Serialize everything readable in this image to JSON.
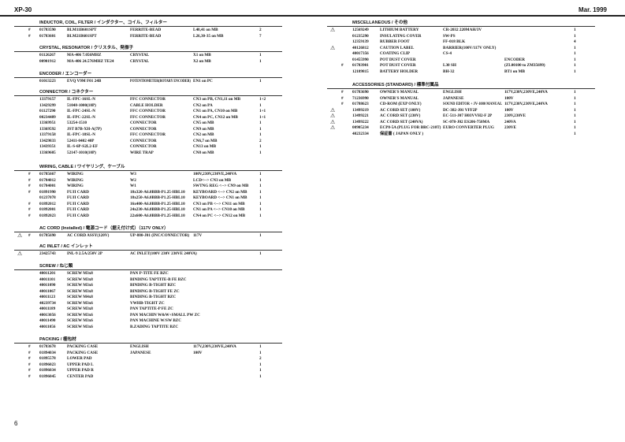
{
  "header": {
    "model": "XP-30",
    "date": "Mar. 1999",
    "page": "6"
  },
  "left": [
    {
      "title": "INDUCTOR, COIL, FILTER / インダクター、コイル、フィルター",
      "items": [
        [
          "",
          "#",
          "01783590",
          "BLM11B601SPT",
          "FERRITE-BEAD",
          "L40,41 on MB",
          "2"
        ],
        [
          "",
          "#",
          "01783601",
          "BLM21B601SPT",
          "FERRITE-BEAD",
          "L26,30-35 on MB",
          "7"
        ]
      ]
    },
    {
      "title": "CRYSTAL, RESONATOR / クリスタル、発振子",
      "items": [
        [
          "",
          "",
          "01126267",
          "MA-406 7.056MHZ",
          "CRYSTAL",
          "X1 on MB",
          "1"
        ],
        [
          "",
          "",
          "00901912",
          "MA-406 24.576MHZ TE24",
          "CRYSTAL",
          "X2 on MB",
          "1"
        ]
      ]
    },
    {
      "title": "ENCODER / エンコーダー",
      "items": [
        [
          "",
          "",
          "01013223",
          "EVQ V9M F01 24B",
          "POTENTIOMETER(ROTARY ENCODER)",
          "EN1 on PC",
          "1"
        ]
      ]
    },
    {
      "title": "CONNECTOR / コネクター",
      "items": [
        [
          "",
          "",
          "13379157",
          "IL-FPC-16SL-N",
          "FFC CONNECTOR",
          "CN3 on PB, CN1,11 on MB",
          "1+2"
        ],
        [
          "",
          "",
          "13429299",
          "51048-1000(10P)",
          "CABLE HOLDER",
          "CN2 on PA",
          "1"
        ],
        [
          "",
          "",
          "01127290",
          "IL-FPC-24SL-N",
          "FFC CONNECTOR",
          "CN1 on PA, CN10 on MB",
          "1+1"
        ],
        [
          "",
          "",
          "00234489",
          "IL-FPC-22SL-N",
          "FFC CONNECTOR",
          "CN4 on PC, CN12 on MB",
          "1+1"
        ],
        [
          "",
          "",
          "13369951",
          "53254-1510",
          "CONNECTOR",
          "CN5 on MB",
          "1"
        ],
        [
          "",
          "",
          "13369592",
          "JST B7B-XH-A(7P)",
          "CONNECTOR",
          "CN9 on MB",
          "1"
        ],
        [
          "",
          "",
          "13379158",
          "IL-FPC-18SL-N",
          "FFC CONNECTOR",
          "CN2 on MB",
          "1"
        ],
        [
          "",
          "",
          "13429833",
          "52411-0402 40P",
          "CONNECTOR",
          "CN6,7 on MB",
          "2"
        ],
        [
          "",
          "",
          "13439351",
          "IL-S-6P-S2L2-EF",
          "CONNECTOR",
          "CN13 on MB",
          "1"
        ],
        [
          "",
          "",
          "13369605",
          "52147-1010(10P)",
          "WIRE TRAP",
          "CN8 on MB",
          "1"
        ]
      ]
    },
    {
      "title": "WIRING, CABLE / ワイヤリング、ケーブル",
      "items": [
        [
          "",
          "#",
          "01785667",
          "WIRING",
          "W3",
          "100V,230V,230VE,240VA",
          "1"
        ],
        [
          "",
          "#",
          "01784012",
          "WIRING",
          "W2",
          "LCD<--> CN3 on MB",
          "1"
        ],
        [
          "",
          "#",
          "01784001",
          "WIRING",
          "W1",
          "SWTNG REG <--> CN9 on MB",
          "1"
        ],
        [
          "",
          "#",
          "01891990",
          "FUJI CARD",
          "18x320-A6.0BBB-P1.25-HBL10",
          "KEYBOARD <--> CN2 on MB",
          "1"
        ],
        [
          "",
          "",
          "01237078",
          "FUJI CARD",
          "18x250-A6.0BBB-P1.25-HBL10",
          "KEYBOARD <--> CN1 on MB",
          "1"
        ],
        [
          "",
          "#",
          "01892012",
          "FUJI CARD",
          "16x400-A6.0BBB-P1.25-HBL10",
          "CN3 on PB <--> CN11 on MB",
          "1"
        ],
        [
          "",
          "#",
          "01892001",
          "FUJI CARD",
          "24x230-A6.0BBB-P1.25-HBL10",
          "CN1 on PA <--> CN10 on MB",
          "1"
        ],
        [
          "",
          "#",
          "01892023",
          "FUJI CARD",
          "22x600-A6.0BBB-P1.25-HBL10",
          "CN4 on PC <--> CN12 on MB",
          "1"
        ]
      ]
    },
    {
      "title": "AC CORD (Installed) / 電源コード（据え付け式）（117V ONLY）",
      "items": [
        [
          "⚠",
          "#",
          "01785690",
          "AC CORD ASSY(120V)",
          "UP-880-J01 (INC/CONNECTOR)",
          "117V",
          "1"
        ]
      ]
    },
    {
      "title": "AC INLET / AC インレット",
      "items": [
        [
          "⚠",
          "",
          "23425743",
          "INL-9 2.5A/250V 2P",
          "AC INLET(100V 230V 230VE 240VA)",
          "",
          "1"
        ]
      ]
    },
    {
      "title": "SCREW / ねじ類",
      "items": [
        [
          "",
          "",
          "40011201",
          "SCREW M3x8",
          "PAN P-TITE FE BZC",
          "",
          ""
        ],
        [
          "",
          "",
          "40011101",
          "SCREW M3x8",
          "BINDING TAPTITE-B FE BZC",
          "",
          ""
        ],
        [
          "",
          "",
          "40011090",
          "SCREW M3x6",
          "BINDING B-TIGHT BZC",
          "",
          ""
        ],
        [
          "",
          "",
          "40011067",
          "SCREW M3x8",
          "BINDING B-TIGHT FE ZC",
          "",
          ""
        ],
        [
          "",
          "",
          "40011123",
          "SCREW M4x8",
          "BINDING B-TIGHT BZC",
          "",
          ""
        ],
        [
          "",
          "",
          "40239734",
          "SCREW M3x6",
          "VWHB-TIGHT ZC",
          "",
          ""
        ],
        [
          "",
          "",
          "40011189",
          "SCREW M3x8",
          "PAN TAPTITE-P FE ZC",
          "",
          ""
        ],
        [
          "",
          "",
          "40013056",
          "SCREW M3x6",
          "PAN MACHIN W&W+SMALL PW ZC",
          "",
          ""
        ],
        [
          "",
          "",
          "40011490",
          "SCREW M3x6",
          "PAN MACHINE W/SW BZC",
          "",
          ""
        ],
        [
          "",
          "",
          "40011056",
          "SCREW M3x6",
          "B.ZADING TAPTITE BZC",
          "",
          ""
        ]
      ]
    },
    {
      "title": "PACKING / 梱包材",
      "items": [
        [
          "",
          "#",
          "01783678",
          "PACKING CASE",
          "ENGLISH",
          "117V,230V,230VE,240VA",
          "1"
        ],
        [
          "",
          "#",
          "01894034",
          "PACKING CASE",
          "JAPANESE",
          "100V",
          "1"
        ],
        [
          "",
          "#",
          "01895578",
          "LOWER PAD",
          "",
          "",
          "2"
        ],
        [
          "",
          "#",
          "01896023",
          "UPPER PAD L",
          "",
          "",
          "1"
        ],
        [
          "",
          "#",
          "01896034",
          "UPPER PAD R",
          "",
          "",
          "1"
        ],
        [
          "",
          "#",
          "01896045",
          "CENTER PAD",
          "",
          "",
          "1"
        ]
      ]
    }
  ],
  "right": [
    {
      "title": "MISCELLANEOUS / その他",
      "items": [
        [
          "⚠",
          "",
          "12569249",
          "LITHIUM BATTERY",
          "CR-2032 220MAH/3V",
          "",
          "1"
        ],
        [
          "",
          "",
          "01235290",
          "INSULATING COVER",
          "SW-PS",
          "",
          "1"
        ],
        [
          "",
          "",
          "12359139",
          "RUBBER FOOT",
          "FF-018 BLK",
          "",
          "4"
        ],
        [
          "⚠",
          "",
          "40126812",
          "CAUTION LABEL",
          "BARRIER(100V/117V ONLY)",
          "",
          "1"
        ],
        [
          "",
          "",
          "40017356",
          "COATING CLIP",
          "CS-4",
          "",
          "1"
        ],
        [
          "",
          "",
          "01455990",
          "POT DUST COVER",
          "",
          "ENCODER",
          "1"
        ],
        [
          "",
          "#",
          "01783901",
          "POT DUST COVER",
          "L30 SH",
          "(ZL00100 to ZM35699)",
          "1"
        ],
        [
          "",
          "",
          "12189815",
          "BATTERY HOLDER",
          "BH-32",
          "BT1 on MB",
          "1"
        ]
      ]
    },
    {
      "title": "ACCESSORIES (STANDARD) / 標準付属品",
      "items": [
        [
          "",
          "#",
          "01783690",
          "OWNER'S MANUAL",
          "ENGLISH",
          "117V,230V,230VE,240VA",
          "1"
        ],
        [
          "",
          "#",
          "71236990",
          "OWNER'S MANUAL",
          "JAPANESE",
          "100V",
          "1"
        ],
        [
          "",
          "#",
          "01788623",
          "CD-ROM (EXP ONLY)",
          "SOUND EDITOR + JV-1080 MANUAL",
          "117V,230V,230VE,240VA",
          "1"
        ],
        [
          "⚠",
          "",
          "13499219",
          "AC CORD SET (100V)",
          "DC-382-J01 VFF2P",
          "100V",
          "1"
        ],
        [
          "⚠",
          "",
          "13499221",
          "AC CORD SET (230V)",
          "EC-511-J07 H03VVH2-F 2P",
          "230V,230VE",
          "1"
        ],
        [
          "⚠",
          "",
          "13499222",
          "AC CORD SET (240VA)",
          "SC-078-J02 ES206-750MA",
          "240VA",
          "1"
        ],
        [
          "⚠",
          "",
          "00905234",
          "ECP8-5A (PLUG FOR BRC-210T)",
          "EURO CONVERTER PLUG",
          "230VE",
          "1"
        ],
        [
          "",
          "",
          "40232334",
          "保証書 ( JAPAN ONLY )",
          "",
          "",
          "1"
        ]
      ]
    }
  ]
}
